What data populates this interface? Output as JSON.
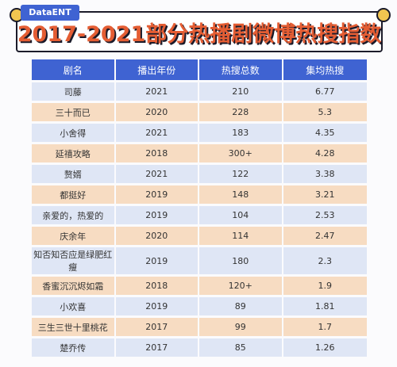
{
  "badge": "DataENT",
  "title": "2017-2021部分热播剧微博热搜指数",
  "table": {
    "headers": [
      "剧名",
      "播出年份",
      "热搜总数",
      "集均热搜"
    ],
    "rows": [
      [
        "司藤",
        "2021",
        "210",
        "6.77"
      ],
      [
        "三十而已",
        "2020",
        "228",
        "5.3"
      ],
      [
        "小舍得",
        "2021",
        "183",
        "4.35"
      ],
      [
        "延禧攻略",
        "2018",
        "300+",
        "4.28"
      ],
      [
        "赘婿",
        "2021",
        "122",
        "3.38"
      ],
      [
        "都挺好",
        "2019",
        "148",
        "3.21"
      ],
      [
        "亲爱的，热爱的",
        "2019",
        "104",
        "2.53"
      ],
      [
        "庆余年",
        "2020",
        "114",
        "2.47"
      ],
      [
        "知否知否应是绿肥红瘦",
        "2019",
        "180",
        "2.3"
      ],
      [
        "香蜜沉沉烬如霜",
        "2018",
        "120+",
        "1.9"
      ],
      [
        "小欢喜",
        "2019",
        "89",
        "1.81"
      ],
      [
        "三生三世十里桃花",
        "2017",
        "99",
        "1.7"
      ],
      [
        "楚乔传",
        "2017",
        "85",
        "1.26"
      ]
    ]
  },
  "colors": {
    "header": "#3f63d2",
    "row_blue": "#dfe6f5",
    "row_orange": "#f7dcc2",
    "title": "#e45d33"
  }
}
